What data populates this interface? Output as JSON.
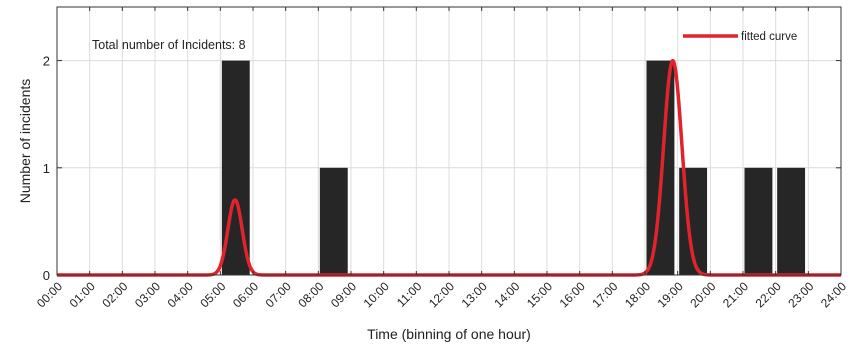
{
  "chart_data": {
    "type": "bar",
    "title": "",
    "xlabel": "Time (binning of one hour)",
    "ylabel": "Number of incidents",
    "annotation": "Total number of Incidents: 8",
    "x_tick_labels": [
      "00:00",
      "01:00",
      "02:00",
      "03:00",
      "04:00",
      "05:00",
      "06:00",
      "07:00",
      "08:00",
      "09:00",
      "10:00",
      "11:00",
      "12:00",
      "13:00",
      "14:00",
      "15:00",
      "16:00",
      "17:00",
      "18:00",
      "19:00",
      "20:00",
      "21:00",
      "22:00",
      "23:00",
      "24:00"
    ],
    "y_tick_labels": [
      "0",
      "1",
      "2"
    ],
    "xlim": [
      0,
      24
    ],
    "ylim": [
      0,
      2.5
    ],
    "grid": true,
    "bars": {
      "hour_start": [
        5,
        8,
        18,
        19,
        21,
        22
      ],
      "values": [
        2,
        1,
        2,
        1,
        1,
        1
      ],
      "color": "#262626"
    },
    "fitted_curve": {
      "name": "fitted curve",
      "color": "#e0242b",
      "components": [
        {
          "amplitude": 0.7,
          "center_hour": 5.45,
          "sigma_hours": 0.22
        },
        {
          "amplitude": 2.0,
          "center_hour": 18.85,
          "sigma_hours": 0.28
        }
      ]
    },
    "legend_position": "top-right"
  }
}
